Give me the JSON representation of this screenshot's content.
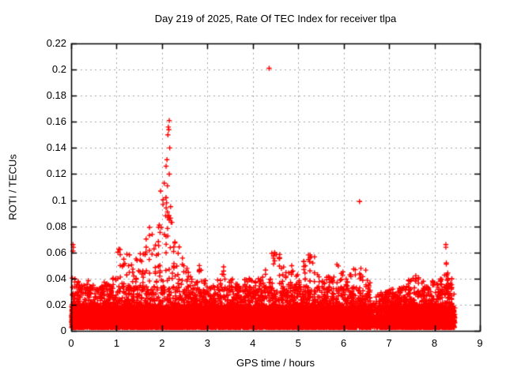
{
  "chart_data": {
    "type": "scatter",
    "title": "Day 219 of 2025, Rate Of TEC Index for receiver tlpa",
    "xlabel": "GPS time / hours",
    "ylabel": "ROTI / TECUs",
    "xlim": [
      0,
      9
    ],
    "ylim": [
      0,
      0.22
    ],
    "xticks": [
      {
        "v": 0,
        "label": "0"
      },
      {
        "v": 1,
        "label": "1"
      },
      {
        "v": 2,
        "label": "2"
      },
      {
        "v": 3,
        "label": "3"
      },
      {
        "v": 4,
        "label": "4"
      },
      {
        "v": 5,
        "label": "5"
      },
      {
        "v": 6,
        "label": "6"
      },
      {
        "v": 7,
        "label": "7"
      },
      {
        "v": 8,
        "label": "8"
      },
      {
        "v": 9,
        "label": "9"
      }
    ],
    "yticks": [
      {
        "v": 0,
        "label": "0"
      },
      {
        "v": 0.02,
        "label": "0.02"
      },
      {
        "v": 0.04,
        "label": "0.04"
      },
      {
        "v": 0.06,
        "label": "0.06"
      },
      {
        "v": 0.08,
        "label": "0.08"
      },
      {
        "v": 0.1,
        "label": "0.1"
      },
      {
        "v": 0.12,
        "label": "0.12"
      },
      {
        "v": 0.14,
        "label": "0.14"
      },
      {
        "v": 0.16,
        "label": "0.16"
      },
      {
        "v": 0.18,
        "label": "0.18"
      },
      {
        "v": 0.2,
        "label": "0.2"
      },
      {
        "v": 0.22,
        "label": "0.22"
      }
    ],
    "grid": true,
    "legend": "none",
    "marker": {
      "shape": "plus",
      "color": "#ff0000",
      "size": 7
    },
    "colors": {
      "marker": "#ff0000",
      "grid": "#a6a6a6",
      "frame": "#000000",
      "background": "#ffffff",
      "text": "#000000"
    },
    "data_time_range_hours": [
      0.0,
      8.45
    ],
    "outliers": [
      [
        0.04,
        0.066
      ],
      [
        0.05,
        0.064
      ],
      [
        0.04,
        0.061
      ],
      [
        1.94,
        0.081
      ],
      [
        1.97,
        0.107
      ],
      [
        2.05,
        0.113
      ],
      [
        2.08,
        0.088
      ],
      [
        2.09,
        0.102
      ],
      [
        2.09,
        0.126
      ],
      [
        2.1,
        0.098
      ],
      [
        2.11,
        0.131
      ],
      [
        2.12,
        0.111
      ],
      [
        2.12,
        0.091
      ],
      [
        2.13,
        0.15
      ],
      [
        2.14,
        0.156
      ],
      [
        2.15,
        0.154
      ],
      [
        2.16,
        0.161
      ],
      [
        2.16,
        0.12
      ],
      [
        2.17,
        0.14
      ],
      [
        2.19,
        0.095
      ],
      [
        2.2,
        0.083
      ],
      [
        2.22,
        0.083
      ],
      [
        4.36,
        0.201
      ],
      [
        6.35,
        0.099
      ],
      [
        8.25,
        0.066
      ],
      [
        8.25,
        0.064
      ],
      [
        8.26,
        0.052
      ],
      [
        8.26,
        0.051
      ],
      [
        8.28,
        0.043
      ],
      [
        8.3,
        0.04
      ],
      [
        8.3,
        0.036
      ],
      [
        8.33,
        0.034
      ]
    ],
    "band": {
      "bin_width": 0.1,
      "t_end": 8.45,
      "bins_format": [
        "t_start",
        "envelope_max_roti",
        "density"
      ],
      "bins": [
        [
          0.0,
          0.042,
          0.9
        ],
        [
          0.1,
          0.038,
          1
        ],
        [
          0.2,
          0.036,
          1
        ],
        [
          0.3,
          0.04,
          1
        ],
        [
          0.4,
          0.035,
          1
        ],
        [
          0.5,
          0.032,
          1
        ],
        [
          0.6,
          0.035,
          1
        ],
        [
          0.7,
          0.038,
          1
        ],
        [
          0.8,
          0.036,
          1
        ],
        [
          0.9,
          0.042,
          1
        ],
        [
          1.0,
          0.065,
          1
        ],
        [
          1.1,
          0.055,
          1
        ],
        [
          1.2,
          0.06,
          1
        ],
        [
          1.3,
          0.052,
          1
        ],
        [
          1.4,
          0.056,
          1
        ],
        [
          1.5,
          0.06,
          1
        ],
        [
          1.6,
          0.072,
          1
        ],
        [
          1.7,
          0.082,
          1
        ],
        [
          1.8,
          0.066,
          1
        ],
        [
          1.9,
          0.085,
          1
        ],
        [
          2.0,
          0.105,
          1
        ],
        [
          2.1,
          0.09,
          1
        ],
        [
          2.2,
          0.075,
          1
        ],
        [
          2.3,
          0.065,
          1
        ],
        [
          2.4,
          0.056,
          1
        ],
        [
          2.5,
          0.048,
          1
        ],
        [
          2.6,
          0.042,
          1
        ],
        [
          2.7,
          0.038,
          1
        ],
        [
          2.8,
          0.05,
          1
        ],
        [
          2.9,
          0.04,
          1
        ],
        [
          3.0,
          0.036,
          1
        ],
        [
          3.1,
          0.035,
          1
        ],
        [
          3.2,
          0.04,
          1
        ],
        [
          3.3,
          0.051,
          1
        ],
        [
          3.4,
          0.038,
          1
        ],
        [
          3.5,
          0.04,
          1
        ],
        [
          3.6,
          0.036,
          1
        ],
        [
          3.7,
          0.035,
          1
        ],
        [
          3.8,
          0.04,
          1
        ],
        [
          3.9,
          0.042,
          1
        ],
        [
          4.0,
          0.038,
          1
        ],
        [
          4.1,
          0.04,
          1
        ],
        [
          4.2,
          0.047,
          1
        ],
        [
          4.3,
          0.042,
          1
        ],
        [
          4.4,
          0.06,
          1
        ],
        [
          4.5,
          0.062,
          1
        ],
        [
          4.6,
          0.05,
          1
        ],
        [
          4.7,
          0.045,
          1
        ],
        [
          4.8,
          0.052,
          1
        ],
        [
          4.9,
          0.045,
          1
        ],
        [
          5.0,
          0.04,
          1
        ],
        [
          5.1,
          0.055,
          1
        ],
        [
          5.2,
          0.06,
          1
        ],
        [
          5.3,
          0.058,
          1
        ],
        [
          5.4,
          0.045,
          1
        ],
        [
          5.5,
          0.04,
          1
        ],
        [
          5.6,
          0.042,
          1
        ],
        [
          5.7,
          0.042,
          1
        ],
        [
          5.8,
          0.052,
          1
        ],
        [
          5.9,
          0.046,
          1
        ],
        [
          6.0,
          0.04,
          1
        ],
        [
          6.1,
          0.045,
          1
        ],
        [
          6.2,
          0.05,
          1
        ],
        [
          6.3,
          0.048,
          1
        ],
        [
          6.4,
          0.047,
          1
        ],
        [
          6.5,
          0.04,
          0.9
        ],
        [
          6.6,
          0.022,
          0.35
        ],
        [
          6.7,
          0.028,
          0.5
        ],
        [
          6.8,
          0.03,
          0.9
        ],
        [
          6.9,
          0.03,
          1
        ],
        [
          7.0,
          0.032,
          1
        ],
        [
          7.1,
          0.03,
          1
        ],
        [
          7.2,
          0.033,
          1
        ],
        [
          7.3,
          0.035,
          1
        ],
        [
          7.4,
          0.04,
          1
        ],
        [
          7.5,
          0.045,
          1
        ],
        [
          7.6,
          0.042,
          1
        ],
        [
          7.7,
          0.038,
          1
        ],
        [
          7.8,
          0.035,
          1
        ],
        [
          7.9,
          0.04,
          1
        ],
        [
          8.0,
          0.036,
          1
        ],
        [
          8.1,
          0.04,
          1
        ],
        [
          8.2,
          0.045,
          1
        ],
        [
          8.3,
          0.04,
          1
        ],
        [
          8.4,
          0.03,
          0.5
        ]
      ]
    }
  }
}
